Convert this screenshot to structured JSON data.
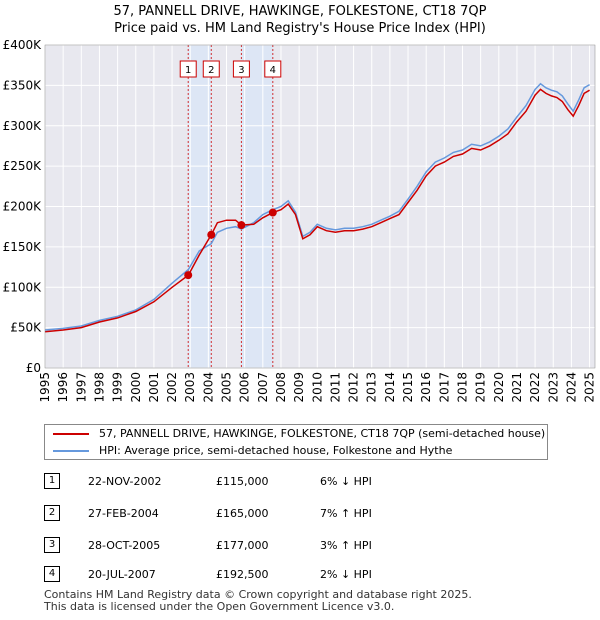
{
  "title_line1": "57, PANNELL DRIVE, HAWKINGE, FOLKESTONE, CT18 7QP",
  "title_line2": "Price paid vs. HM Land Registry's House Price Index (HPI)",
  "colors": {
    "property": "#cc0000",
    "hpi": "#6699dd",
    "shade": "#dde6f5",
    "grid": "#ffffff",
    "bg": "#e8e8ef"
  },
  "chart_data": {
    "type": "line",
    "title": "57, PANNELL DRIVE, HAWKINGE, FOLKESTONE, CT18 7QP — Price paid vs. HM Land Registry's House Price Index (HPI)",
    "xlabel": "",
    "ylabel": "",
    "xlim": [
      1995.0,
      2025.3
    ],
    "ylim": [
      0,
      400000
    ],
    "x_ticks": [
      1995,
      1996,
      1997,
      1998,
      1999,
      2000,
      2001,
      2002,
      2003,
      2004,
      2005,
      2006,
      2007,
      2008,
      2009,
      2010,
      2011,
      2012,
      2013,
      2014,
      2015,
      2016,
      2017,
      2018,
      2019,
      2020,
      2021,
      2022,
      2023,
      2024,
      2025
    ],
    "y_ticks": [
      0,
      50000,
      100000,
      150000,
      200000,
      250000,
      300000,
      350000,
      400000
    ],
    "y_tick_labels": [
      "£0",
      "£50K",
      "£100K",
      "£150K",
      "£200K",
      "£250K",
      "£300K",
      "£350K",
      "£400K"
    ],
    "grid": true,
    "series": [
      {
        "name": "57, PANNELL DRIVE, HAWKINGE, FOLKESTONE, CT18 7QP (semi-detached house)",
        "color": "#cc0000",
        "x": [
          1995.0,
          1996.0,
          1997.0,
          1998.0,
          1999.0,
          2000.0,
          2001.0,
          2002.0,
          2002.9,
          2003.5,
          2004.16,
          2004.5,
          2005.0,
          2005.5,
          2005.82,
          2006.5,
          2007.0,
          2007.55,
          2008.0,
          2008.4,
          2008.8,
          2009.2,
          2009.6,
          2010.0,
          2010.5,
          2011.0,
          2011.5,
          2012.0,
          2012.5,
          2013.0,
          2013.5,
          2014.0,
          2014.5,
          2015.0,
          2015.5,
          2016.0,
          2016.5,
          2017.0,
          2017.5,
          2018.0,
          2018.5,
          2019.0,
          2019.5,
          2020.0,
          2020.5,
          2021.0,
          2021.5,
          2022.0,
          2022.3,
          2022.6,
          2022.9,
          2023.2,
          2023.5,
          2023.8,
          2024.1,
          2024.4,
          2024.7,
          2025.0
        ],
        "values": [
          45000,
          47000,
          50000,
          57000,
          62000,
          70000,
          82000,
          100000,
          115000,
          140000,
          165000,
          180000,
          183000,
          183000,
          177000,
          178000,
          186000,
          192500,
          196000,
          203000,
          190000,
          160000,
          165000,
          175000,
          170000,
          168000,
          170000,
          170000,
          172000,
          175000,
          180000,
          185000,
          190000,
          205000,
          220000,
          238000,
          250000,
          255000,
          262000,
          265000,
          272000,
          270000,
          275000,
          282000,
          290000,
          305000,
          318000,
          338000,
          345000,
          340000,
          337000,
          335000,
          330000,
          320000,
          312000,
          325000,
          340000,
          344000
        ]
      },
      {
        "name": "HPI: Average price, semi-detached house, Folkestone and Hythe",
        "color": "#6699dd",
        "x": [
          1995.0,
          1996.0,
          1997.0,
          1998.0,
          1999.0,
          2000.0,
          2001.0,
          2002.0,
          2002.9,
          2003.5,
          2004.16,
          2004.5,
          2005.0,
          2005.5,
          2005.82,
          2006.5,
          2007.0,
          2007.55,
          2008.0,
          2008.4,
          2008.8,
          2009.2,
          2009.6,
          2010.0,
          2010.5,
          2011.0,
          2011.5,
          2012.0,
          2012.5,
          2013.0,
          2013.5,
          2014.0,
          2014.5,
          2015.0,
          2015.5,
          2016.0,
          2016.5,
          2017.0,
          2017.5,
          2018.0,
          2018.5,
          2019.0,
          2019.5,
          2020.0,
          2020.5,
          2021.0,
          2021.5,
          2022.0,
          2022.3,
          2022.6,
          2022.9,
          2023.2,
          2023.5,
          2023.8,
          2024.1,
          2024.4,
          2024.7,
          2025.0
        ],
        "values": [
          47000,
          49000,
          52000,
          59000,
          64000,
          72000,
          85000,
          105000,
          122000,
          145000,
          154000,
          168000,
          173000,
          175000,
          172000,
          180000,
          190000,
          196000,
          200000,
          207000,
          193000,
          163000,
          168000,
          178000,
          173000,
          171000,
          173000,
          173000,
          175000,
          178000,
          183000,
          188000,
          194000,
          209000,
          225000,
          243000,
          255000,
          260000,
          267000,
          270000,
          277000,
          275000,
          280000,
          287000,
          296000,
          311000,
          325000,
          345000,
          352000,
          347000,
          344000,
          342000,
          337000,
          327000,
          318000,
          332000,
          347000,
          351000
        ]
      }
    ],
    "transactions": [
      {
        "num": "1",
        "date": "22-NOV-2002",
        "x": 2002.89,
        "price": 115000,
        "price_label": "£115,000",
        "hpi": "6% ↓ HPI"
      },
      {
        "num": "2",
        "date": "27-FEB-2004",
        "x": 2004.16,
        "price": 165000,
        "price_label": "£165,000",
        "hpi": "7% ↑ HPI"
      },
      {
        "num": "3",
        "date": "28-OCT-2005",
        "x": 2005.82,
        "price": 177000,
        "price_label": "£177,000",
        "hpi": "3% ↑ HPI"
      },
      {
        "num": "4",
        "date": "20-JUL-2007",
        "x": 2007.55,
        "price": 192500,
        "price_label": "£192,500",
        "hpi": "2% ↓ HPI"
      }
    ],
    "shaded_ranges": [
      [
        2002.89,
        2004.16
      ],
      [
        2005.82,
        2007.55
      ]
    ],
    "legend": [
      "57, PANNELL DRIVE, HAWKINGE, FOLKESTONE, CT18 7QP (semi-detached house)",
      "HPI: Average price, semi-detached house, Folkestone and Hythe"
    ]
  },
  "footer_line1": "Contains HM Land Registry data © Crown copyright and database right 2025.",
  "footer_line2": "This data is licensed under the Open Government Licence v3.0."
}
